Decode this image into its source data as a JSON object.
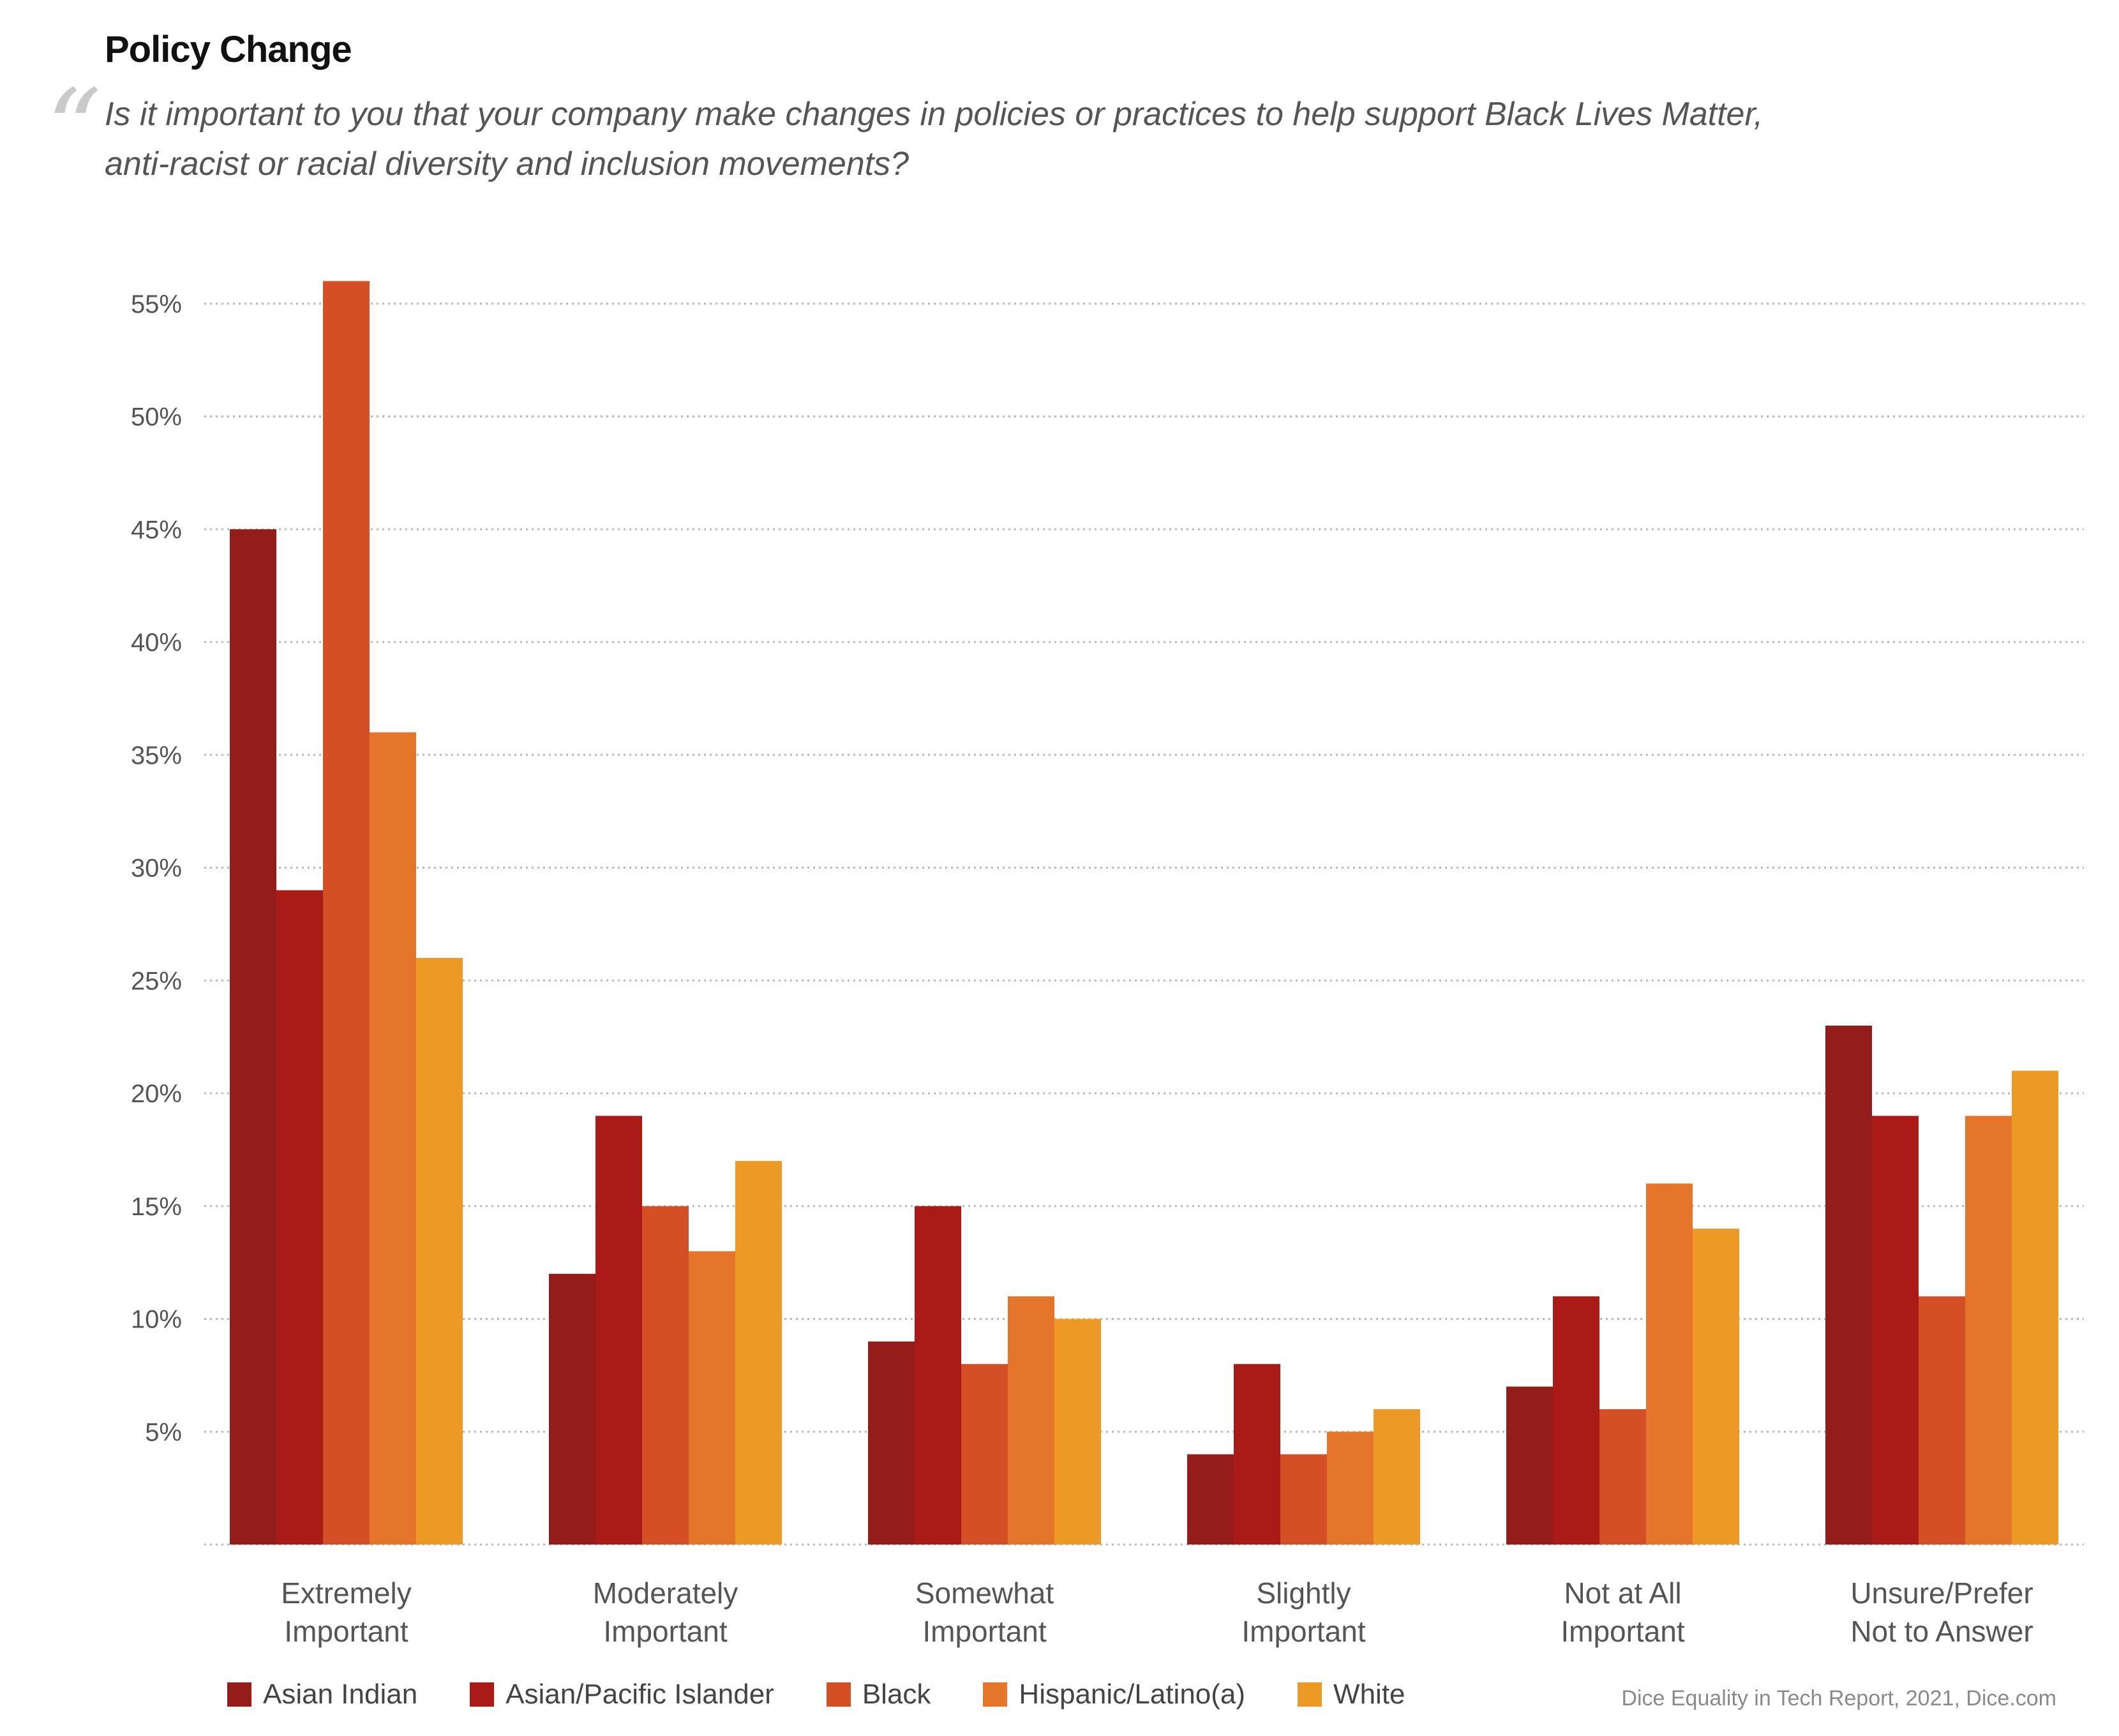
{
  "title": "Policy Change",
  "quote_mark": "“",
  "subtitle_lines": [
    "Is it important to you that your company make changes in policies or practices to help support Black Lives Matter,",
    "anti-racist or racial diversity and inclusion movements?"
  ],
  "source": "Dice Equality in Tech Report, 2021, Dice.com",
  "colors": {
    "Asian Indian": "#941c1a",
    "Asian/Pacific Islander": "#aa1b17",
    "Black": "#d54f26",
    "Hispanic/Latino(a)": "#e5752a",
    "White": "#ec9a25",
    "grid": "#b9b9b9"
  },
  "chart_data": {
    "type": "bar",
    "categories": [
      [
        "Extremely",
        "Important"
      ],
      [
        "Moderately",
        "Important"
      ],
      [
        "Somewhat",
        "Important"
      ],
      [
        "Slightly",
        "Important"
      ],
      [
        "Not at All",
        "Important"
      ],
      [
        "Unsure/Prefer",
        "Not to Answer"
      ]
    ],
    "series": [
      {
        "name": "Asian Indian",
        "values": [
          45,
          12,
          9,
          4,
          7,
          23
        ]
      },
      {
        "name": "Asian/Pacific Islander",
        "values": [
          29,
          19,
          15,
          8,
          11,
          19
        ]
      },
      {
        "name": "Black",
        "values": [
          56,
          15,
          8,
          4,
          6,
          11
        ]
      },
      {
        "name": "Hispanic/Latino(a)",
        "values": [
          36,
          13,
          11,
          5,
          16,
          19
        ]
      },
      {
        "name": "White",
        "values": [
          26,
          17,
          10,
          6,
          14,
          21
        ]
      }
    ],
    "y_ticks": [
      "5%",
      "10%",
      "15%",
      "20%",
      "25%",
      "30%",
      "35%",
      "40%",
      "45%",
      "50%",
      "55%"
    ],
    "y_tick_values": [
      5,
      10,
      15,
      20,
      25,
      30,
      35,
      40,
      45,
      50,
      55
    ],
    "ylim": [
      0,
      56
    ],
    "grid": true,
    "legend_position": "bottom"
  }
}
